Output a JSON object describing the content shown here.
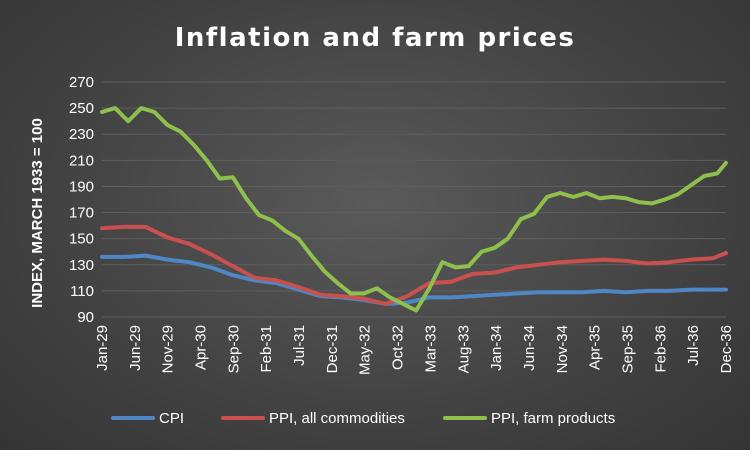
{
  "chart_data": {
    "type": "line",
    "title": "Inflation and farm prices",
    "xlabel": "",
    "ylabel": "INDEX, MARCH 1933 = 100",
    "ylim": [
      90,
      270
    ],
    "yticks": [
      90,
      110,
      130,
      150,
      170,
      190,
      210,
      230,
      250,
      270
    ],
    "grid": true,
    "legend": "bottom",
    "x_start": "Jan-29",
    "x_end": "Dec-36",
    "x_tick_labels": [
      "Jan-29",
      "Jun-29",
      "Nov-29",
      "Apr-30",
      "Sep-30",
      "Feb-31",
      "Jul-31",
      "Dec-31",
      "May-32",
      "Oct-32",
      "Mar-33",
      "Aug-33",
      "Jan-34",
      "Jun-34",
      "Nov-34",
      "Apr-35",
      "Sep-35",
      "Feb-36",
      "Jul-36",
      "Dec-36"
    ],
    "series": [
      {
        "name": "CPI",
        "color": "#4f86c6",
        "points": [
          [
            0,
            136
          ],
          [
            5,
            136
          ],
          [
            10,
            137
          ],
          [
            15,
            134
          ],
          [
            20,
            132
          ],
          [
            25,
            128
          ],
          [
            30,
            122
          ],
          [
            35,
            118
          ],
          [
            40,
            116
          ],
          [
            45,
            111
          ],
          [
            50,
            106
          ],
          [
            55,
            105
          ],
          [
            60,
            103
          ],
          [
            65,
            100
          ],
          [
            70,
            101
          ],
          [
            75,
            105
          ],
          [
            80,
            105
          ],
          [
            85,
            106
          ],
          [
            90,
            107
          ],
          [
            95,
            108
          ],
          [
            100,
            109
          ],
          [
            105,
            109
          ],
          [
            110,
            109
          ],
          [
            115,
            110
          ],
          [
            120,
            109
          ],
          [
            125,
            110
          ],
          [
            130,
            110
          ],
          [
            135,
            111
          ],
          [
            140,
            111
          ],
          [
            143,
            111
          ]
        ]
      },
      {
        "name": "PPI, all commodities",
        "color": "#c9504e",
        "points": [
          [
            0,
            158
          ],
          [
            5,
            159
          ],
          [
            10,
            159
          ],
          [
            15,
            151
          ],
          [
            20,
            146
          ],
          [
            25,
            138
          ],
          [
            30,
            129
          ],
          [
            35,
            120
          ],
          [
            40,
            118
          ],
          [
            45,
            113
          ],
          [
            50,
            107
          ],
          [
            55,
            106
          ],
          [
            60,
            104
          ],
          [
            65,
            100
          ],
          [
            70,
            106
          ],
          [
            75,
            116
          ],
          [
            80,
            117
          ],
          [
            85,
            123
          ],
          [
            90,
            124
          ],
          [
            95,
            128
          ],
          [
            100,
            130
          ],
          [
            105,
            132
          ],
          [
            110,
            133
          ],
          [
            115,
            134
          ],
          [
            120,
            133
          ],
          [
            125,
            131
          ],
          [
            130,
            132
          ],
          [
            135,
            134
          ],
          [
            140,
            135
          ],
          [
            143,
            139
          ]
        ]
      },
      {
        "name": "PPI, farm products",
        "color": "#8fbf4d",
        "points": [
          [
            0,
            247
          ],
          [
            3,
            250
          ],
          [
            6,
            240
          ],
          [
            9,
            250
          ],
          [
            12,
            247
          ],
          [
            15,
            237
          ],
          [
            18,
            232
          ],
          [
            21,
            222
          ],
          [
            24,
            210
          ],
          [
            27,
            196
          ],
          [
            30,
            197
          ],
          [
            33,
            181
          ],
          [
            36,
            168
          ],
          [
            39,
            164
          ],
          [
            42,
            156
          ],
          [
            45,
            150
          ],
          [
            48,
            137
          ],
          [
            51,
            125
          ],
          [
            54,
            116
          ],
          [
            57,
            108
          ],
          [
            60,
            108
          ],
          [
            63,
            112
          ],
          [
            66,
            105
          ],
          [
            69,
            100
          ],
          [
            72,
            95
          ],
          [
            75,
            112
          ],
          [
            78,
            132
          ],
          [
            81,
            128
          ],
          [
            84,
            129
          ],
          [
            87,
            140
          ],
          [
            90,
            143
          ],
          [
            93,
            150
          ],
          [
            96,
            165
          ],
          [
            99,
            169
          ],
          [
            102,
            182
          ],
          [
            105,
            185
          ],
          [
            108,
            182
          ],
          [
            111,
            185
          ],
          [
            114,
            181
          ],
          [
            117,
            182
          ],
          [
            120,
            181
          ],
          [
            123,
            178
          ],
          [
            126,
            177
          ],
          [
            129,
            180
          ],
          [
            132,
            184
          ],
          [
            135,
            191
          ],
          [
            138,
            198
          ],
          [
            141,
            200
          ],
          [
            143,
            208
          ]
        ]
      }
    ]
  }
}
